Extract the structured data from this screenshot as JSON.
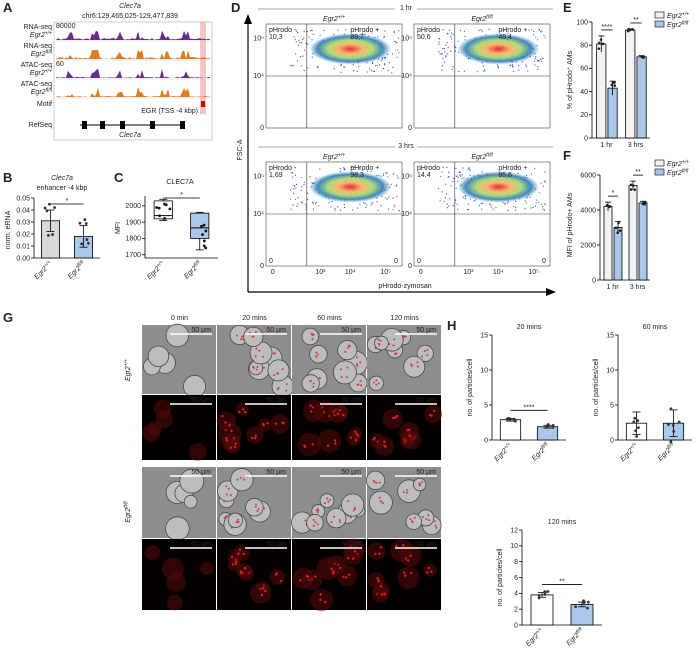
{
  "figure": {
    "A": {
      "letter": "A",
      "title": "Clec7a",
      "coords": "chr6:129,465,025-129,477,839",
      "tracks": [
        {
          "assay": "RNA-seq",
          "genotype": {
            "base": "Egr2",
            "sup": "+/+"
          },
          "scale": "80000"
        },
        {
          "assay": "RNA-seq",
          "genotype": {
            "base": "Egr2",
            "sup": "fl/fl"
          }
        },
        {
          "assay": "ATAC-seq",
          "genotype": {
            "base": "Egr2",
            "sup": "+/+"
          },
          "scale": "60"
        },
        {
          "assay": "ATAC-seq",
          "genotype": {
            "base": "Egr2",
            "sup": "fl/fl"
          }
        }
      ],
      "motif": "Motif",
      "motif_label": "EGR (TSS -4 kbp)",
      "refseq": "RefSeq",
      "gene": "Clec7a"
    },
    "B": {
      "letter": "B",
      "title": [
        "Clec7a",
        "enhancer -4 kbp"
      ],
      "ylabel": "norm. eRNA",
      "categories": [
        {
          "base": "Egr2",
          "sup": "+/+"
        },
        {
          "base": "Egr2",
          "sup": "fl/fl"
        }
      ],
      "values": [
        0.031,
        0.018
      ],
      "errors": [
        0.009,
        0.009
      ],
      "colors": [
        "#d9d9d9",
        "#a9c8ea"
      ],
      "ylim": [
        0,
        0.05
      ],
      "yticks": [
        {
          "value": 0,
          "label": "0.00"
        },
        0.01,
        0.02,
        0.03,
        0.04,
        0.05
      ],
      "significance": "*"
    },
    "C": {
      "letter": "C",
      "title": "CLEC7A",
      "ylabel": "MFI",
      "categories": [
        {
          "base": "Egr2",
          "sup": "+/+"
        },
        {
          "base": "Egr2",
          "sup": "fl/fl"
        }
      ],
      "boxes": [
        {
          "min": 1910,
          "q1": 1920,
          "median": 1940,
          "q3": 2030,
          "max": 2040
        },
        {
          "min": 1730,
          "q1": 1800,
          "median": 1865,
          "q3": 1955,
          "max": 1960
        }
      ],
      "colors": [
        "#ffffff",
        "#a9c8ea"
      ],
      "ylim": [
        1680,
        2060
      ],
      "yticks": [
        1700,
        1800,
        1900,
        2000
      ],
      "significance": "*"
    },
    "D": {
      "letter": "D",
      "ylabel": "FSC-A",
      "xlabel": "pHrodo-zymosan",
      "xticks": [
        "0",
        "10³",
        "10⁴",
        "10⁵"
      ],
      "yticks": [
        "0",
        "10⁴",
        "10⁵"
      ],
      "groups": [
        {
          "time": "1 hr",
          "plots": [
            {
              "genotype": {
                "base": "Egr2",
                "sup": "+/+"
              },
              "neg_label": "pHrodo -",
              "neg": "10,3",
              "pos_label": "pHrodo +",
              "pos": "89,7"
            },
            {
              "genotype": {
                "base": "Egr2",
                "sup": "fl/fl"
              },
              "neg_label": "pHrodo -",
              "neg": "50,6",
              "pos_label": "pHrodo +",
              "pos": "49,4"
            }
          ]
        },
        {
          "time": "3 hrs",
          "plots": [
            {
              "genotype": {
                "base": "Egr2",
                "sup": "+/+"
              },
              "neg_label": "pHrodo -",
              "neg": "1,69",
              "pos_label": "pHrodo +",
              "pos": "98,3",
              "corners": [
                "0",
                "0"
              ]
            },
            {
              "genotype": {
                "base": "Egr2",
                "sup": "fl/fl"
              },
              "neg_label": "pHrodo -",
              "neg": "14,4",
              "pos_label": "pHrodo +",
              "pos": "85,6",
              "corners": [
                "0",
                "0"
              ]
            }
          ]
        }
      ]
    },
    "E": {
      "letter": "E",
      "ylabel": "% of pHrodo⁺ AMs",
      "categories": [
        "1 hr",
        "3 hrs"
      ],
      "series": [
        {
          "name": {
            "base": "Egr2",
            "sup": "+/+"
          },
          "color": "#f2f2f2",
          "values": [
            81,
            93
          ],
          "errors": [
            7,
            1
          ]
        },
        {
          "name": {
            "base": "Egr2",
            "sup": "fl/fl"
          },
          "color": "#a9c8ea",
          "values": [
            43,
            70
          ],
          "errors": [
            6,
            1
          ]
        }
      ],
      "ylim": [
        0,
        100
      ],
      "yticks": [
        0,
        20,
        40,
        60,
        80,
        100
      ],
      "significance": [
        "****",
        "**"
      ]
    },
    "F": {
      "letter": "F",
      "ylabel": "MFI of pHrodo+ AMs",
      "categories": [
        "1 hr",
        "3 hrs"
      ],
      "series": [
        {
          "name": {
            "base": "Egr2",
            "sup": "+/+"
          },
          "color": "#f2f2f2",
          "values": [
            4200,
            5400
          ],
          "errors": [
            250,
            250
          ]
        },
        {
          "name": {
            "base": "Egr2",
            "sup": "fl/fl"
          },
          "color": "#a9c8ea",
          "values": [
            3000,
            4400
          ],
          "errors": [
            350,
            100
          ]
        }
      ],
      "ylim": [
        0,
        6000
      ],
      "yticks": [
        0,
        2000,
        4000,
        6000
      ],
      "significance": [
        "*",
        "**"
      ]
    },
    "G": {
      "letter": "G",
      "columns": [
        "0 min",
        "20 mins",
        "60 mins",
        "120 mins"
      ],
      "rows": [
        {
          "base": "Egr2",
          "sup": "+/+"
        },
        {
          "base": "Egr2",
          "sup": "fl/fl"
        }
      ],
      "scale_bar": "50 µm"
    },
    "H": {
      "letter": "H",
      "ylabel": "no. of particles/cell",
      "charts": [
        {
          "title": "20 mins",
          "categories": [
            {
              "base": "Egr2",
              "sup": "+/+"
            },
            {
              "base": "Egr2",
              "sup": "fl/fl"
            }
          ],
          "values": [
            2.9,
            1.9
          ],
          "errors": [
            0.2,
            0.2
          ],
          "colors": [
            "#ffffff",
            "#a9c8ea"
          ],
          "ylim": [
            0,
            15
          ],
          "yticks": [
            0,
            5,
            10,
            15
          ],
          "significance": "****"
        },
        {
          "title": "60 mins",
          "categories": [
            {
              "base": "Egr2",
              "sup": "+/+"
            },
            {
              "base": "Egr2",
              "sup": "fl/fl"
            }
          ],
          "values": [
            2.4,
            2.4
          ],
          "errors": [
            1.6,
            1.9
          ],
          "colors": [
            "#ffffff",
            "#a9c8ea"
          ],
          "ylim": [
            0,
            15
          ],
          "yticks": [
            0,
            5,
            10,
            15
          ]
        },
        {
          "title": "120 mins",
          "categories": [
            {
              "base": "Egr2",
              "sup": "+/+"
            },
            {
              "base": "Egr2",
              "sup": "fl/fl"
            }
          ],
          "values": [
            3.8,
            2.6
          ],
          "errors": [
            0.3,
            0.3
          ],
          "colors": [
            "#ffffff",
            "#a9c8ea"
          ],
          "ylim": [
            0,
            12
          ],
          "yticks": [
            0,
            2,
            4,
            6,
            8,
            10,
            12
          ],
          "significance": "**"
        }
      ]
    }
  }
}
